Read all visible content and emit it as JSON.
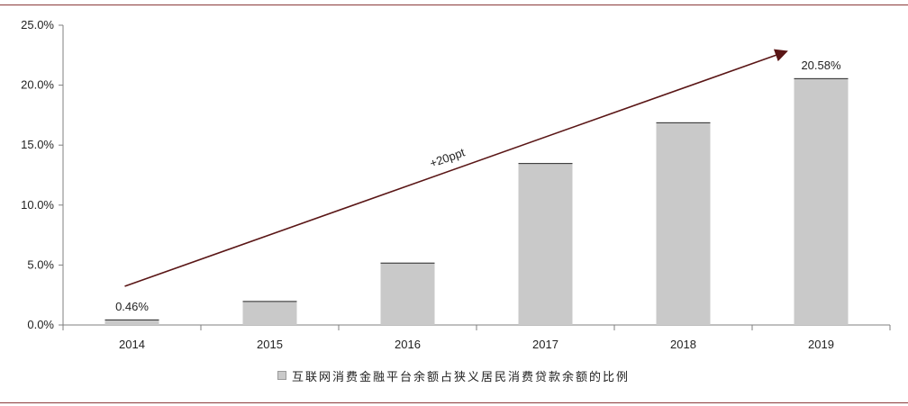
{
  "colors": {
    "bar": "#c9c9c9",
    "bar_edge": "#2b2b2b",
    "arrow": "#5a1616",
    "rule": "#8b3a3a",
    "axis": "#7f7f7f"
  },
  "chart_data": {
    "type": "bar",
    "categories": [
      "2014",
      "2015",
      "2016",
      "2017",
      "2018",
      "2019"
    ],
    "series": [
      {
        "name": "互联网消费金融平台余额占狭义居民消费贷款余额的比例",
        "values": [
          0.46,
          2.0,
          5.2,
          13.5,
          16.9,
          20.58
        ]
      }
    ],
    "ylim": [
      0,
      25
    ],
    "yticks": [
      "0.0%",
      "5.0%",
      "10.0%",
      "15.0%",
      "20.0%",
      "25.0%"
    ],
    "ytick_values": [
      0,
      5,
      10,
      15,
      20,
      25
    ],
    "data_labels": [
      {
        "category": "2014",
        "text": "0.46%"
      },
      {
        "category": "2019",
        "text": "20.58%"
      }
    ],
    "annotation": {
      "text": "+20ppt",
      "from_category": "2014",
      "to_category": "2019"
    },
    "legend_position": "bottom",
    "grid": false
  }
}
